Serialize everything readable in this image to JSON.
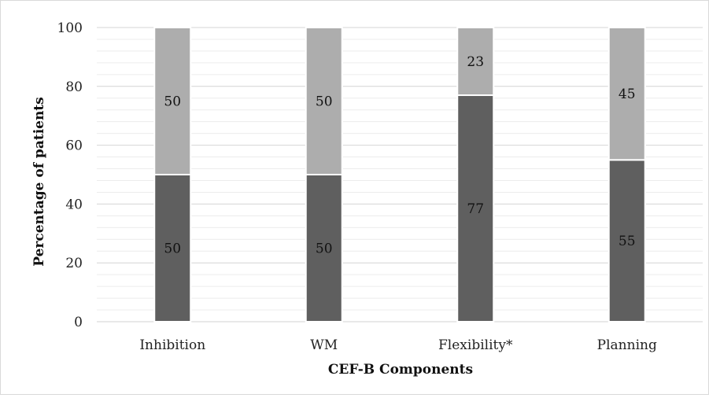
{
  "chart_data": {
    "type": "bar",
    "stacked": true,
    "categories": [
      "Inhibition",
      "WM",
      "Flexibility*",
      "Planning"
    ],
    "series": [
      {
        "values": [
          50,
          50,
          77,
          55
        ],
        "color": "#5f5f5f"
      },
      {
        "values": [
          50,
          50,
          23,
          45
        ],
        "color": "#adadad"
      }
    ],
    "xlabel": "CEF-B Components",
    "ylabel": "Percentage of patients",
    "ylim": [
      0,
      100
    ],
    "yticks": [
      0,
      20,
      40,
      60,
      80,
      100
    ],
    "grid": "horizontal, major every 20 and minor every 4",
    "legend": "none",
    "data_labels": true
  }
}
